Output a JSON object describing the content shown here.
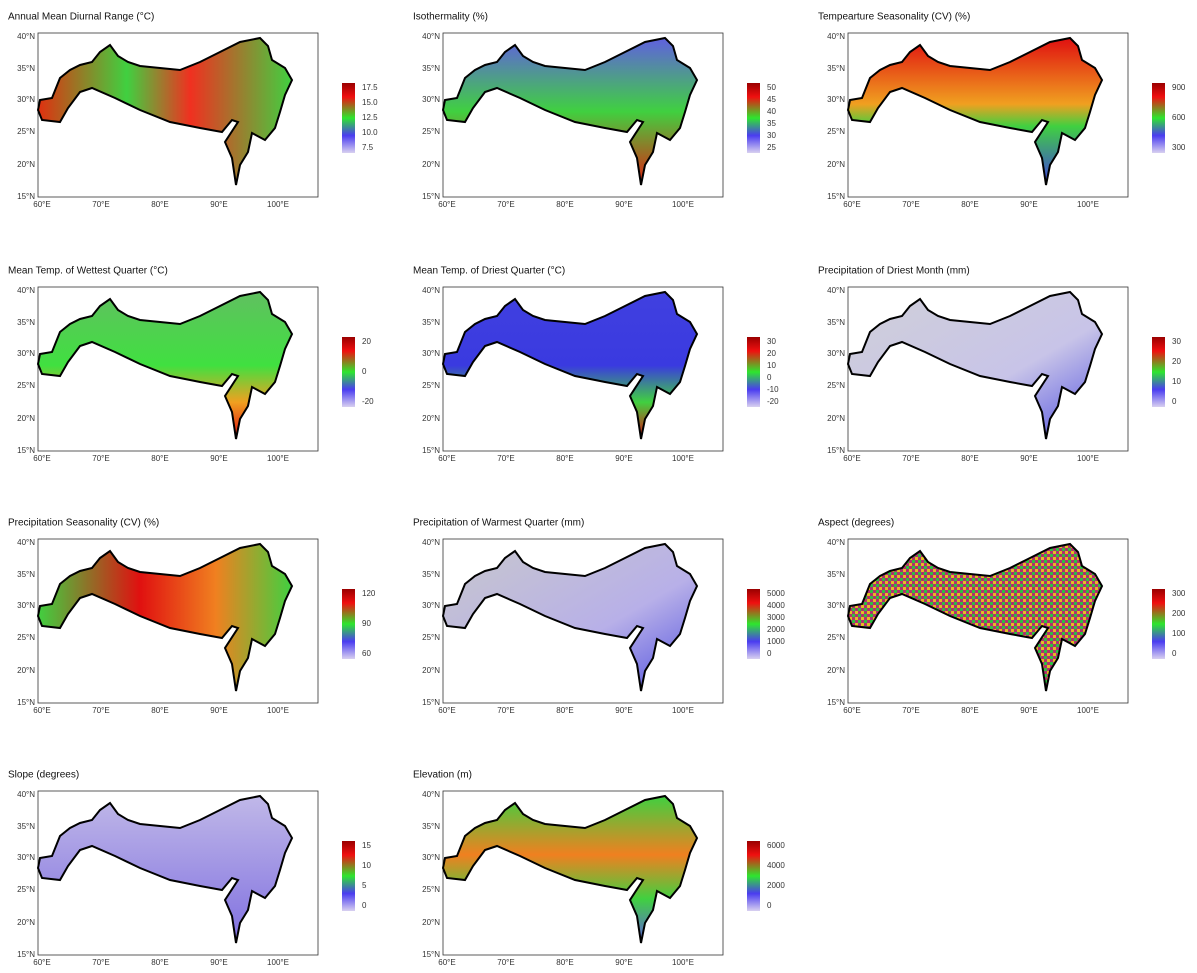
{
  "lat_labels": [
    "40°N",
    "35°N",
    "30°N",
    "25°N",
    "20°N",
    "15°N"
  ],
  "lon_labels": [
    "60°E",
    "70°E",
    "80°E",
    "90°E",
    "100°E"
  ],
  "panels": [
    {
      "title": "Annual Mean Diurnal Range (°C)",
      "legend": [
        "7.5",
        "10.0",
        "12.5",
        "15.0",
        "17.5"
      ]
    },
    {
      "title": "Isothermality (%)",
      "legend": [
        "25",
        "30",
        "35",
        "40",
        "45",
        "50"
      ]
    },
    {
      "title": "Tempearture Seasonality (CV) (%)",
      "legend": [
        "300",
        "600",
        "900"
      ]
    },
    {
      "title": "Mean Temp. of Wettest Quarter (°C)",
      "legend": [
        "-20",
        "0",
        "20"
      ]
    },
    {
      "title": "Mean Temp. of Driest Quarter (°C)",
      "legend": [
        "-20",
        "-10",
        "0",
        "10",
        "20",
        "30"
      ]
    },
    {
      "title": "Precipitation of Driest Month (mm)",
      "legend": [
        "0",
        "10",
        "20",
        "30"
      ]
    },
    {
      "title": "Precipitation Seasonality (CV) (%)",
      "legend": [
        "60",
        "90",
        "120"
      ]
    },
    {
      "title": "Precipitation of Warmest Quarter (mm)",
      "legend": [
        "0",
        "1000",
        "2000",
        "3000",
        "4000",
        "5000"
      ]
    },
    {
      "title": "Aspect (degrees)",
      "legend": [
        "0",
        "100",
        "200",
        "300"
      ]
    },
    {
      "title": "Slope (degrees)",
      "legend": [
        "0",
        "5",
        "10",
        "15"
      ]
    },
    {
      "title": "Elevation (m)",
      "legend": [
        "0",
        "2000",
        "4000",
        "6000"
      ]
    }
  ]
}
